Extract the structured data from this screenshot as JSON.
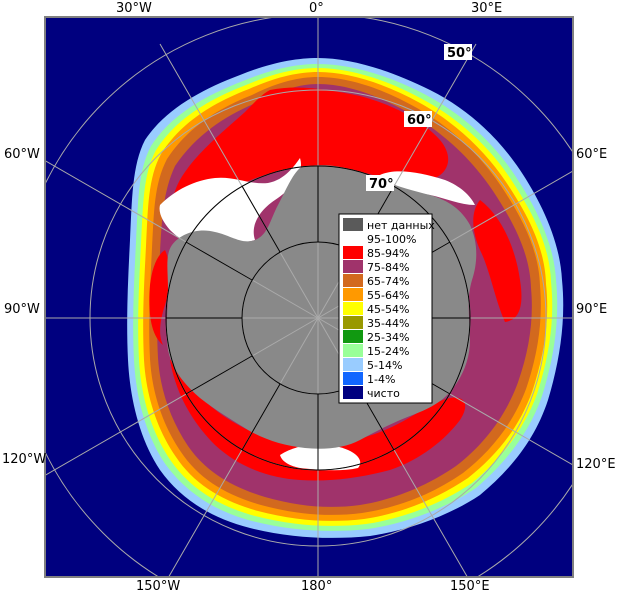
{
  "map": {
    "title": "",
    "longitude_labels": {
      "top": [
        "30°W",
        "0°",
        "30°E"
      ],
      "bottom": [
        "150°W",
        "180°",
        "150°E"
      ],
      "left": [
        "60°W",
        "90°W",
        "120°W"
      ],
      "right": [
        "60°E",
        "90°E",
        "120°E"
      ]
    },
    "latitude_labels": [
      "50°",
      "60°",
      "70°"
    ]
  },
  "legend": {
    "items": [
      {
        "label": "нет данных",
        "color": "#5a5a5a"
      },
      {
        "label": "95-100%",
        "color": "#ffffff"
      },
      {
        "label": "85-94%",
        "color": "#ff0000"
      },
      {
        "label": "75-84%",
        "color": "#a0336b"
      },
      {
        "label": "65-74%",
        "color": "#d2691e"
      },
      {
        "label": "55-64%",
        "color": "#ff9900"
      },
      {
        "label": "45-54%",
        "color": "#ffff00"
      },
      {
        "label": "35-44%",
        "color": "#999900"
      },
      {
        "label": "25-34%",
        "color": "#119911"
      },
      {
        "label": "15-24%",
        "color": "#99ff99"
      },
      {
        "label": "5-14%",
        "color": "#99ccff"
      },
      {
        "label": "1-4%",
        "color": "#1166ff"
      },
      {
        "label": "чисто",
        "color": "#000080"
      }
    ]
  },
  "colors": {
    "ocean": "#00007f",
    "land": "#898989",
    "frame": "#808080",
    "grid": "#aaaaaa"
  }
}
